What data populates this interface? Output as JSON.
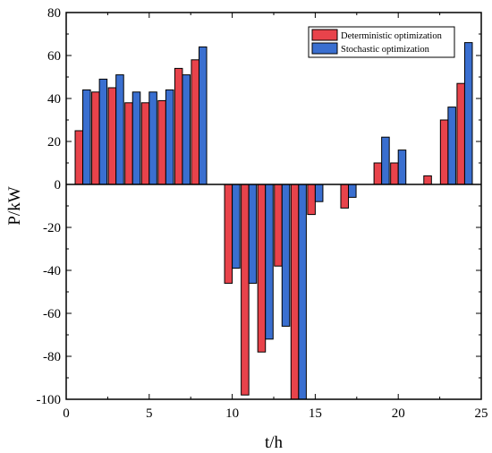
{
  "chart_data": {
    "type": "bar",
    "xlabel": "t/h",
    "ylabel": "P/kW",
    "xlim": [
      0,
      25
    ],
    "ylim": [
      -100,
      80
    ],
    "xticks": [
      "0",
      "5",
      "10",
      "15",
      "20",
      "25"
    ],
    "yticks": [
      "80",
      "60",
      "40",
      "20",
      "0",
      "-20",
      "-40",
      "-60",
      "-80",
      "-100"
    ],
    "grid": false,
    "legend_position": "top-right",
    "x": [
      1,
      2,
      3,
      4,
      5,
      6,
      7,
      8,
      9,
      10,
      11,
      12,
      13,
      14,
      15,
      16,
      17,
      18,
      19,
      20,
      21,
      22,
      23,
      24
    ],
    "series": [
      {
        "name": "Deterministic optimization",
        "color": "#e8434b",
        "values": [
          25,
          43,
          45,
          38,
          38,
          39,
          54,
          58,
          0,
          -46,
          -98,
          -78,
          -38,
          -100,
          -14,
          0,
          -11,
          0,
          10,
          10,
          0,
          4,
          30,
          47
        ]
      },
      {
        "name": "Stochastic optimization",
        "color": "#3a6fd0",
        "values": [
          44,
          49,
          51,
          43,
          43,
          44,
          51,
          64,
          0,
          -39,
          -46,
          -72,
          -66,
          -100,
          -8,
          0,
          -6,
          0,
          22,
          16,
          0,
          0,
          36,
          66
        ]
      }
    ]
  }
}
